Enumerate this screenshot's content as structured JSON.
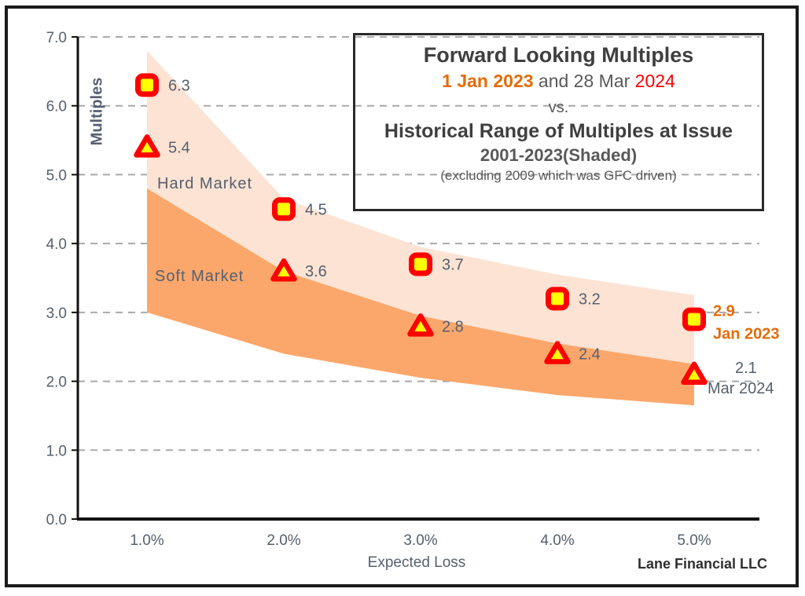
{
  "title_box": {
    "line1": "Forward Looking Multiples",
    "line2_a": "1 Jan 2023",
    "line2_b": " and 28 Mar ",
    "line2_c": "2024",
    "line3": "vs.",
    "line4": "Historical Range of Multiples at Issue",
    "line5": "2001-2023(Shaded)",
    "line6": "(excluding 2009 which was GFC driven)"
  },
  "axes": {
    "y_title": "Multiples",
    "x_title": "Expected Loss",
    "y_ticks": [
      "7.0",
      "6.0",
      "5.0",
      "4.0",
      "3.0",
      "2.0",
      "1.0",
      "0.0"
    ],
    "x_ticks": [
      "1.0%",
      "2.0%",
      "3.0%",
      "4.0%",
      "5.0%"
    ]
  },
  "annotations": {
    "hard_market": "Hard Market",
    "soft_market": "Soft Market",
    "credit": "Lane Financial LLC"
  },
  "colors": {
    "title_dark": "#3F3F3F",
    "text_gray": "#595959",
    "label_gray_blue": "#566070",
    "accent_orange": "#E36C0A",
    "accent_red": "#FF0000",
    "band_hard_market": "#FCE3D3",
    "band_soft_market": "#FBA76B",
    "marker_fill": "#FFFF00",
    "marker_stroke": "#FF0000",
    "gridline": "#A9A9A9"
  },
  "chart_data": {
    "type": "scatter",
    "title": "Forward Looking Multiples 1 Jan 2023 and 28 Mar 2024 vs. Historical Range of Multiples at Issue 2001-2023 (Shaded), excluding 2009 which was GFC driven",
    "xlabel": "Expected Loss",
    "ylabel": "Multiples",
    "x": [
      1.0,
      2.0,
      3.0,
      4.0,
      5.0
    ],
    "x_labels": [
      "1.0%",
      "2.0%",
      "3.0%",
      "4.0%",
      "5.0%"
    ],
    "ylim": [
      0,
      7
    ],
    "grid": true,
    "series": [
      {
        "name": "Jan 2023",
        "marker": "square",
        "values": [
          6.3,
          4.5,
          3.7,
          3.2,
          2.9
        ]
      },
      {
        "name": "Mar 2024",
        "marker": "triangle",
        "values": [
          5.4,
          3.6,
          2.8,
          2.4,
          2.1
        ]
      }
    ],
    "bands": [
      {
        "name": "Hard Market",
        "upper": [
          6.8,
          4.65,
          3.95,
          3.55,
          3.25
        ],
        "lower": [
          4.8,
          3.6,
          2.95,
          2.55,
          2.25
        ]
      },
      {
        "name": "Soft Market",
        "upper": [
          4.8,
          3.6,
          2.95,
          2.55,
          2.25
        ],
        "lower": [
          3.0,
          2.4,
          2.05,
          1.8,
          1.65
        ]
      }
    ]
  }
}
